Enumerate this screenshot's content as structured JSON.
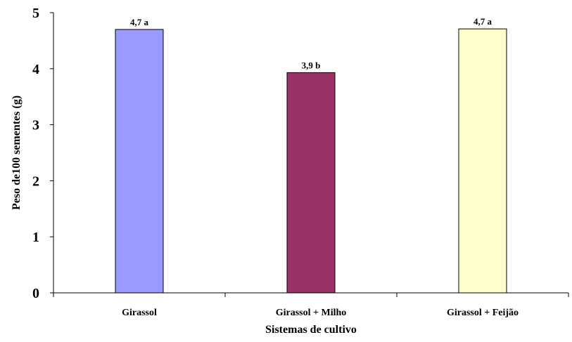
{
  "chart_data": {
    "type": "bar",
    "title": "",
    "xlabel": "Sistemas de cultivo",
    "ylabel": "Peso de100 sementes (g)",
    "ylim": [
      0,
      5
    ],
    "yticks": [
      "0",
      "1",
      "2",
      "3",
      "4",
      "5"
    ],
    "grid": false,
    "legend": "none",
    "categories": [
      "Girassol",
      "Girassol + Milho",
      "Girassol + Feijão"
    ],
    "values": [
      4.7,
      3.93,
      4.71
    ],
    "data_labels": [
      "4,7 a",
      "3,9 b",
      "4,7 a"
    ],
    "colors": [
      "#9999ff",
      "#993366",
      "#ffffcc"
    ]
  }
}
